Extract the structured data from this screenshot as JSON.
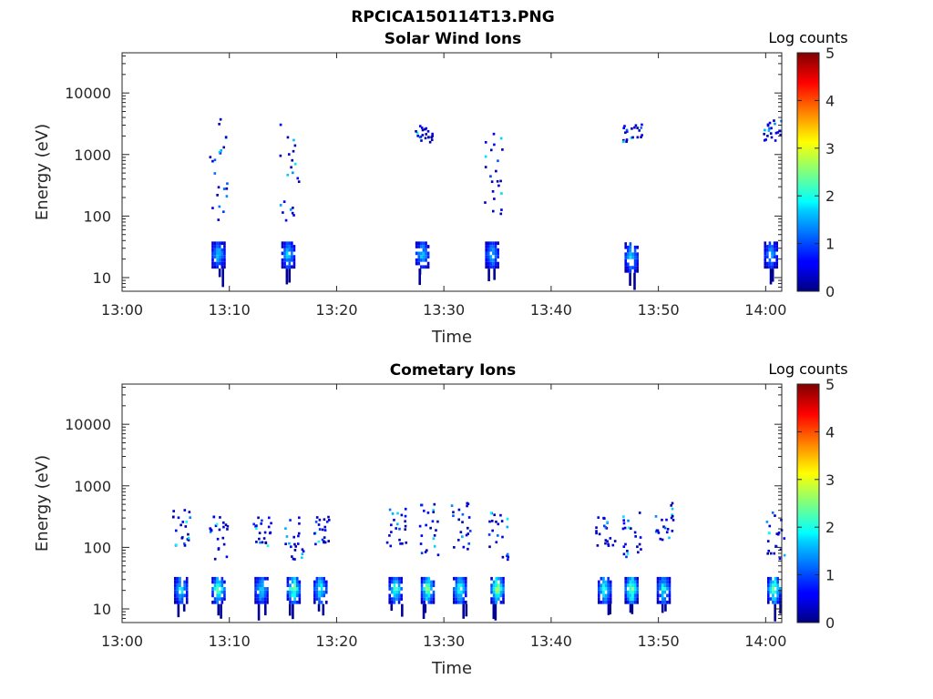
{
  "figure": {
    "title": "RPCICA150114T13.PNG"
  },
  "chart_data": [
    {
      "type": "heatmap",
      "title": "Solar Wind Ions",
      "xlabel": "Time",
      "ylabel": "Energy (eV)",
      "x_ticks": [
        "13:00",
        "13:10",
        "13:20",
        "13:30",
        "13:40",
        "13:50",
        "14:00"
      ],
      "x_range": [
        "13:00",
        "14:01.5"
      ],
      "y_ticks": [
        "10",
        "100",
        "1000",
        "10000"
      ],
      "y_scale": "log",
      "y_range": [
        6,
        45000
      ],
      "colorbar": {
        "label": "Log counts",
        "range": [
          0,
          5
        ],
        "ticks": [
          "0",
          "1",
          "2",
          "3",
          "4",
          "5"
        ],
        "colormap": "jet"
      },
      "bursts": [
        {
          "time": "13:09",
          "low_energy": [
            14,
            35
          ],
          "peak_log_counts": 1.8,
          "high_energy": [
            80,
            4000
          ]
        },
        {
          "time": "13:15.5",
          "low_energy": [
            14,
            35
          ],
          "peak_log_counts": 1.8,
          "high_energy": [
            80,
            3000
          ]
        },
        {
          "time": "13:28",
          "low_energy": [
            14,
            35
          ],
          "peak_log_counts": 1.8,
          "high_energy": [
            1500,
            2800
          ]
        },
        {
          "time": "13:34.5",
          "low_energy": [
            14,
            35
          ],
          "peak_log_counts": 1.7,
          "high_energy": [
            100,
            3000
          ]
        },
        {
          "time": "13:47.5",
          "low_energy": [
            12,
            35
          ],
          "peak_log_counts": 1.9,
          "high_energy": [
            1500,
            3000
          ]
        },
        {
          "time": "14:00.5",
          "low_energy": [
            14,
            35
          ],
          "peak_log_counts": 1.6,
          "high_energy": [
            1500,
            3500
          ]
        }
      ]
    },
    {
      "type": "heatmap",
      "title": "Cometary Ions",
      "xlabel": "Time",
      "ylabel": "Energy (eV)",
      "x_ticks": [
        "13:00",
        "13:10",
        "13:20",
        "13:30",
        "13:40",
        "13:50",
        "14:00"
      ],
      "x_range": [
        "13:00",
        "14:01.5"
      ],
      "y_ticks": [
        "10",
        "100",
        "1000",
        "10000"
      ],
      "y_scale": "log",
      "y_range": [
        6,
        45000
      ],
      "colorbar": {
        "label": "Log counts",
        "range": [
          0,
          5
        ],
        "ticks": [
          "0",
          "1",
          "2",
          "3",
          "4",
          "5"
        ],
        "colormap": "jet"
      },
      "bursts": [
        {
          "time": "13:05.5",
          "low_energy": [
            12,
            32
          ],
          "peak_log_counts": 2.0,
          "high_energy": [
            100,
            400
          ]
        },
        {
          "time": "13:09",
          "low_energy": [
            12,
            32
          ],
          "peak_log_counts": 2.6,
          "high_energy": [
            60,
            300
          ]
        },
        {
          "time": "13:13",
          "low_energy": [
            12,
            32
          ],
          "peak_log_counts": 2.0,
          "high_energy": [
            100,
            300
          ]
        },
        {
          "time": "13:16",
          "low_energy": [
            12,
            32
          ],
          "peak_log_counts": 2.8,
          "high_energy": [
            60,
            300
          ]
        },
        {
          "time": "13:18.5",
          "low_energy": [
            12,
            32
          ],
          "peak_log_counts": 2.2,
          "high_energy": [
            100,
            300
          ]
        },
        {
          "time": "13:25.5",
          "low_energy": [
            12,
            32
          ],
          "peak_log_counts": 2.4,
          "high_energy": [
            100,
            500
          ]
        },
        {
          "time": "13:28.5",
          "low_energy": [
            12,
            32
          ],
          "peak_log_counts": 2.8,
          "high_energy": [
            60,
            500
          ]
        },
        {
          "time": "13:31.5",
          "low_energy": [
            12,
            32
          ],
          "peak_log_counts": 2.4,
          "high_energy": [
            80,
            600
          ]
        },
        {
          "time": "13:35",
          "low_energy": [
            12,
            32
          ],
          "peak_log_counts": 3.0,
          "high_energy": [
            60,
            400
          ]
        },
        {
          "time": "13:45",
          "low_energy": [
            12,
            32
          ],
          "peak_log_counts": 2.2,
          "high_energy": [
            100,
            300
          ]
        },
        {
          "time": "13:47.5",
          "low_energy": [
            12,
            32
          ],
          "peak_log_counts": 3.0,
          "high_energy": [
            60,
            350
          ]
        },
        {
          "time": "13:50.5",
          "low_energy": [
            12,
            32
          ],
          "peak_log_counts": 2.2,
          "high_energy": [
            100,
            500
          ]
        },
        {
          "time": "14:00.8",
          "low_energy": [
            12,
            32
          ],
          "peak_log_counts": 2.8,
          "high_energy": [
            60,
            350
          ]
        }
      ]
    }
  ]
}
